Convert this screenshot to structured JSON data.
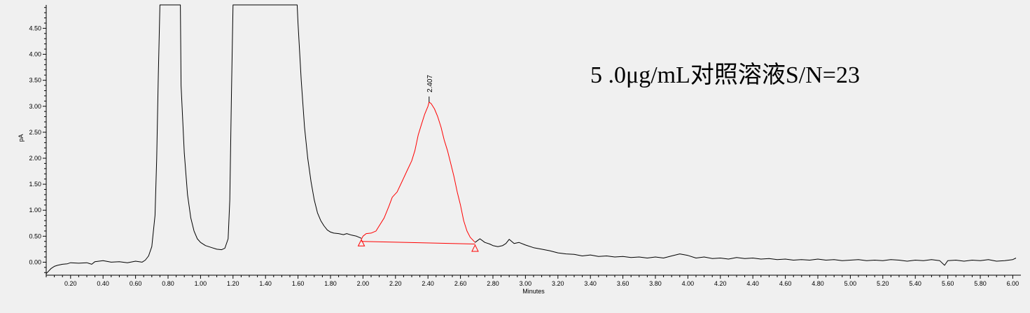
{
  "chart_data": {
    "type": "line",
    "title": "",
    "annotation": "5 .0μg/mL对照溶液S/N=23",
    "xlabel": "Minutes",
    "ylabel": "pA",
    "xlim": [
      0.05,
      6.05
    ],
    "ylim": [
      -0.25,
      4.95
    ],
    "grid": false,
    "x_ticks": [
      "0.20",
      "0.40",
      "0.60",
      "0.80",
      "1.00",
      "1.20",
      "1.40",
      "1.60",
      "1.80",
      "2.00",
      "2.20",
      "2.40",
      "2.60",
      "2.80",
      "3.00",
      "3.20",
      "3.40",
      "3.60",
      "3.80",
      "4.00",
      "4.20",
      "4.40",
      "4.60",
      "4.80",
      "5.00",
      "5.20",
      "5.40",
      "5.60",
      "5.80",
      "6.00"
    ],
    "y_ticks": [
      "0.00",
      "0.50",
      "1.00",
      "1.50",
      "2.00",
      "2.50",
      "3.00",
      "3.50",
      "4.00",
      "4.50"
    ],
    "peak": {
      "label": "2.407",
      "apex": [
        2.407,
        3.08
      ],
      "baseline_start": [
        1.99,
        0.4
      ],
      "baseline_end": [
        2.69,
        0.35
      ],
      "color": "#ff0000"
    },
    "series": [
      {
        "color": "#000000",
        "points": [
          [
            0.05,
            -0.22
          ],
          [
            0.08,
            -0.12
          ],
          [
            0.1,
            -0.08
          ],
          [
            0.12,
            -0.06
          ],
          [
            0.15,
            -0.04
          ],
          [
            0.18,
            -0.03
          ],
          [
            0.2,
            -0.01
          ],
          [
            0.25,
            -0.02
          ],
          [
            0.3,
            -0.01
          ],
          [
            0.33,
            -0.04
          ],
          [
            0.35,
            0.01
          ],
          [
            0.4,
            0.03
          ],
          [
            0.45,
            0.0
          ],
          [
            0.5,
            0.01
          ],
          [
            0.55,
            -0.01
          ],
          [
            0.6,
            0.02
          ],
          [
            0.64,
            0.0
          ],
          [
            0.66,
            0.04
          ],
          [
            0.68,
            0.12
          ],
          [
            0.7,
            0.3
          ],
          [
            0.72,
            0.9
          ],
          [
            0.73,
            2.0
          ],
          [
            0.74,
            3.6
          ],
          [
            0.75,
            4.95
          ],
          [
            0.876,
            4.95
          ],
          [
            0.88,
            3.4
          ],
          [
            0.9,
            2.1
          ],
          [
            0.92,
            1.3
          ],
          [
            0.94,
            0.85
          ],
          [
            0.96,
            0.6
          ],
          [
            0.98,
            0.45
          ],
          [
            1.0,
            0.38
          ],
          [
            1.03,
            0.32
          ],
          [
            1.05,
            0.3
          ],
          [
            1.07,
            0.28
          ],
          [
            1.1,
            0.25
          ],
          [
            1.13,
            0.24
          ],
          [
            1.15,
            0.27
          ],
          [
            1.17,
            0.45
          ],
          [
            1.18,
            1.2
          ],
          [
            1.19,
            3.2
          ],
          [
            1.2,
            4.95
          ],
          [
            1.595,
            4.95
          ],
          [
            1.6,
            4.6
          ],
          [
            1.62,
            3.5
          ],
          [
            1.64,
            2.6
          ],
          [
            1.66,
            2.0
          ],
          [
            1.68,
            1.55
          ],
          [
            1.7,
            1.2
          ],
          [
            1.72,
            0.95
          ],
          [
            1.74,
            0.8
          ],
          [
            1.76,
            0.7
          ],
          [
            1.78,
            0.62
          ],
          [
            1.8,
            0.58
          ],
          [
            1.82,
            0.56
          ],
          [
            1.85,
            0.55
          ],
          [
            1.88,
            0.53
          ],
          [
            1.9,
            0.55
          ],
          [
            1.93,
            0.52
          ],
          [
            1.96,
            0.5
          ],
          [
            1.99,
            0.46
          ]
        ]
      },
      {
        "color": "#ff0000",
        "points": [
          [
            1.99,
            0.44
          ],
          [
            2.0,
            0.5
          ],
          [
            2.02,
            0.55
          ],
          [
            2.05,
            0.56
          ],
          [
            2.08,
            0.6
          ],
          [
            2.1,
            0.7
          ],
          [
            2.13,
            0.85
          ],
          [
            2.16,
            1.08
          ],
          [
            2.18,
            1.25
          ],
          [
            2.21,
            1.35
          ],
          [
            2.24,
            1.55
          ],
          [
            2.27,
            1.75
          ],
          [
            2.3,
            1.95
          ],
          [
            2.32,
            2.15
          ],
          [
            2.34,
            2.45
          ],
          [
            2.36,
            2.65
          ],
          [
            2.38,
            2.85
          ],
          [
            2.4,
            3.0
          ],
          [
            2.407,
            3.08
          ],
          [
            2.42,
            3.05
          ],
          [
            2.44,
            2.95
          ],
          [
            2.46,
            2.8
          ],
          [
            2.48,
            2.6
          ],
          [
            2.5,
            2.35
          ],
          [
            2.52,
            2.15
          ],
          [
            2.54,
            1.9
          ],
          [
            2.56,
            1.65
          ],
          [
            2.58,
            1.35
          ],
          [
            2.6,
            1.1
          ],
          [
            2.62,
            0.8
          ],
          [
            2.64,
            0.6
          ],
          [
            2.66,
            0.48
          ],
          [
            2.69,
            0.38
          ]
        ]
      },
      {
        "color": "#000000",
        "points": [
          [
            2.69,
            0.38
          ],
          [
            2.72,
            0.45
          ],
          [
            2.75,
            0.38
          ],
          [
            2.78,
            0.35
          ],
          [
            2.8,
            0.32
          ],
          [
            2.83,
            0.3
          ],
          [
            2.86,
            0.32
          ],
          [
            2.88,
            0.36
          ],
          [
            2.9,
            0.44
          ],
          [
            2.93,
            0.36
          ],
          [
            2.96,
            0.38
          ],
          [
            3.0,
            0.33
          ],
          [
            3.05,
            0.28
          ],
          [
            3.1,
            0.25
          ],
          [
            3.15,
            0.22
          ],
          [
            3.2,
            0.18
          ],
          [
            3.25,
            0.16
          ],
          [
            3.3,
            0.15
          ],
          [
            3.35,
            0.12
          ],
          [
            3.4,
            0.14
          ],
          [
            3.45,
            0.11
          ],
          [
            3.5,
            0.12
          ],
          [
            3.55,
            0.1
          ],
          [
            3.6,
            0.11
          ],
          [
            3.65,
            0.09
          ],
          [
            3.7,
            0.1
          ],
          [
            3.75,
            0.08
          ],
          [
            3.8,
            0.1
          ],
          [
            3.85,
            0.08
          ],
          [
            3.9,
            0.12
          ],
          [
            3.95,
            0.16
          ],
          [
            4.0,
            0.13
          ],
          [
            4.05,
            0.08
          ],
          [
            4.1,
            0.1
          ],
          [
            4.15,
            0.07
          ],
          [
            4.2,
            0.08
          ],
          [
            4.25,
            0.06
          ],
          [
            4.3,
            0.09
          ],
          [
            4.35,
            0.07
          ],
          [
            4.4,
            0.08
          ],
          [
            4.45,
            0.06
          ],
          [
            4.5,
            0.07
          ],
          [
            4.55,
            0.05
          ],
          [
            4.6,
            0.06
          ],
          [
            4.65,
            0.04
          ],
          [
            4.7,
            0.05
          ],
          [
            4.75,
            0.04
          ],
          [
            4.8,
            0.06
          ],
          [
            4.85,
            0.04
          ],
          [
            4.9,
            0.05
          ],
          [
            4.95,
            0.03
          ],
          [
            5.0,
            0.04
          ],
          [
            5.05,
            0.05
          ],
          [
            5.1,
            0.03
          ],
          [
            5.15,
            0.04
          ],
          [
            5.2,
            0.03
          ],
          [
            5.25,
            0.05
          ],
          [
            5.3,
            0.04
          ],
          [
            5.35,
            0.02
          ],
          [
            5.4,
            0.04
          ],
          [
            5.45,
            0.03
          ],
          [
            5.5,
            0.05
          ],
          [
            5.55,
            0.03
          ],
          [
            5.58,
            -0.06
          ],
          [
            5.6,
            0.03
          ],
          [
            5.65,
            0.04
          ],
          [
            5.7,
            0.02
          ],
          [
            5.75,
            0.04
          ],
          [
            5.8,
            0.03
          ],
          [
            5.85,
            0.05
          ],
          [
            5.9,
            0.02
          ],
          [
            5.95,
            0.03
          ],
          [
            6.0,
            0.05
          ],
          [
            6.02,
            0.08
          ]
        ]
      }
    ]
  }
}
